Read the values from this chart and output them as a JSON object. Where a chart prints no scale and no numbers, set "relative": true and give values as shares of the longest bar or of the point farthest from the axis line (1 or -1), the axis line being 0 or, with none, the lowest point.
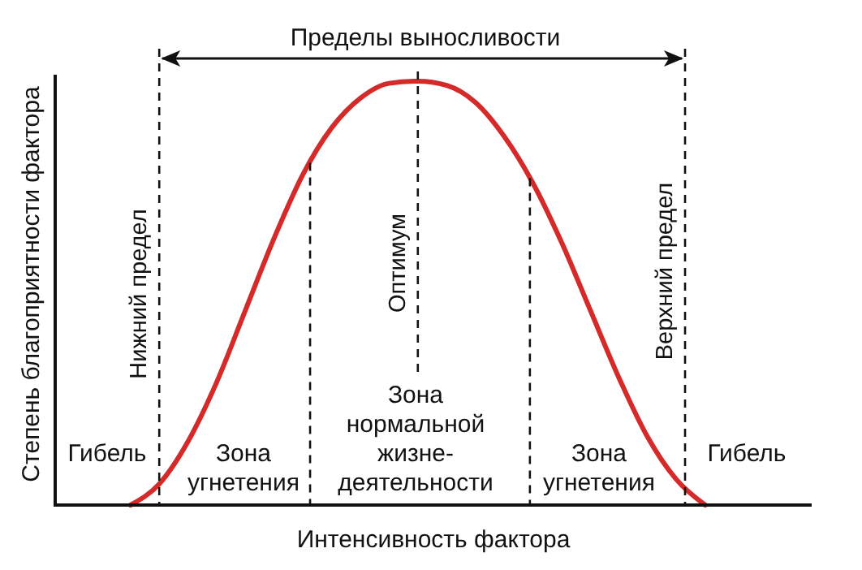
{
  "chart_data": {
    "type": "line",
    "relative": true,
    "xlabel": "Интенсивность фактора",
    "ylabel": "Степень благоприятности фактора",
    "categories": [
      null,
      null,
      null,
      null,
      null,
      null,
      null,
      null,
      null,
      null,
      null,
      null,
      null,
      null,
      null,
      null,
      null,
      null,
      null,
      null,
      null,
      null,
      null,
      null,
      null,
      null,
      null
    ],
    "series": [
      {
        "color": "#d42a2a",
        "values": [
          null,
          null,
          0,
          0.05,
          0.15,
          0.29,
          0.46,
          0.63,
          0.78,
          0.89,
          0.96,
          0.995,
          1,
          0.99,
          0.95,
          0.87,
          0.76,
          0.62,
          0.46,
          0.3,
          0.16,
          0.06,
          0,
          null,
          null,
          null,
          null
        ]
      }
    ],
    "annotations": [
      "Пределы выносливости",
      "Нижний предел",
      "Оптимум",
      "Верхний предел",
      "Гибель",
      "Зона\nугнетения",
      "Зона\nнормальной\nжизне-\nдеятельности",
      "Зона\nугнетения",
      "Гибель"
    ],
    "line_style": "solid",
    "grid": "x"
  }
}
